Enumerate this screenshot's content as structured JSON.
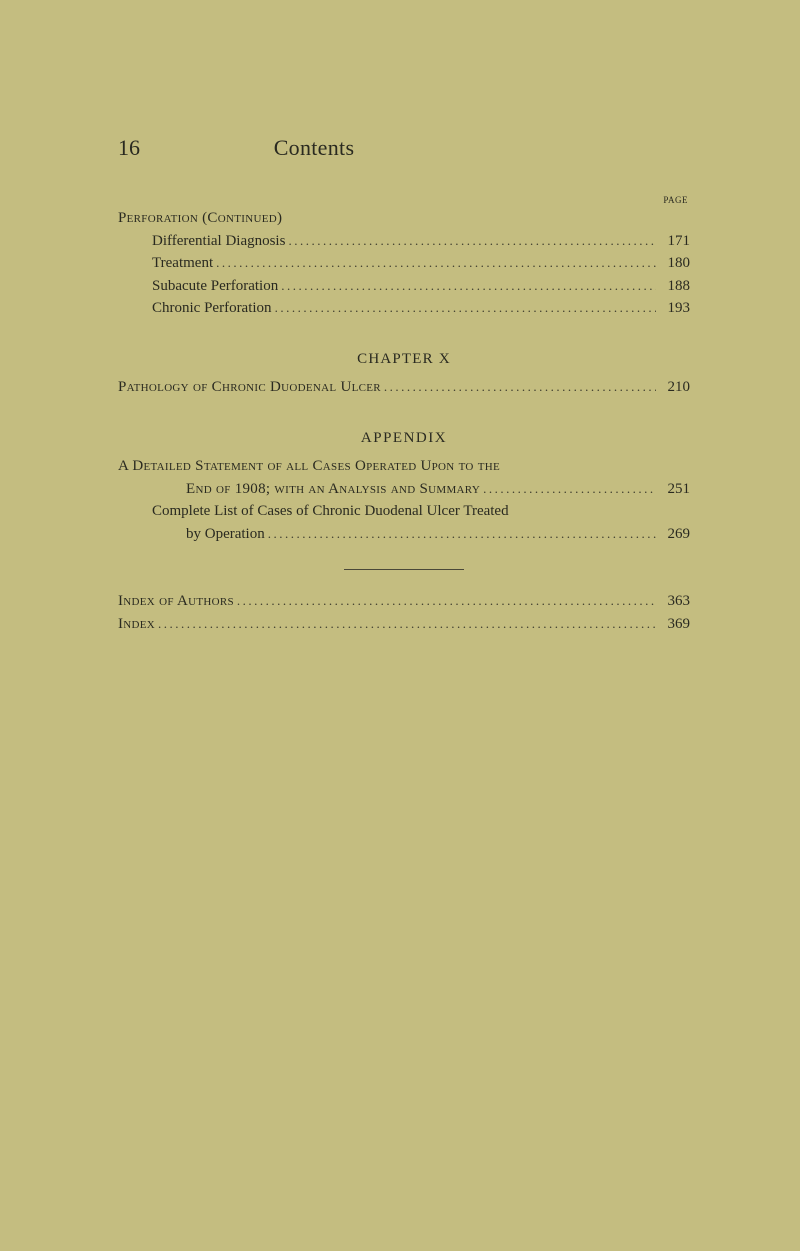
{
  "header": {
    "page_number": "16",
    "title": "Contents",
    "page_label": "PAGE"
  },
  "dots": "..................................................................................................",
  "section_perforation": {
    "heading": "Perforation (Continued)",
    "items": [
      {
        "label": "Differential Diagnosis",
        "page": "171"
      },
      {
        "label": "Treatment",
        "page": "180"
      },
      {
        "label": "Subacute Perforation",
        "page": "188"
      },
      {
        "label": "Chronic Perforation",
        "page": "193"
      }
    ]
  },
  "chapter_x": {
    "title": "CHAPTER X",
    "entry": {
      "label": "Pathology of Chronic Duodenal Ulcer",
      "page": "210"
    }
  },
  "appendix": {
    "title": "APPENDIX",
    "entry1": {
      "line1": "A Detailed Statement of all Cases Operated Upon to the",
      "line2_label": "End of 1908; with an Analysis and Summary",
      "line2_page": "251"
    },
    "entry2": {
      "line1": "Complete List of Cases of Chronic Duodenal Ulcer Treated",
      "line2_label": "by Operation",
      "line2_page": "269"
    }
  },
  "index_block": {
    "entry1": {
      "label": "Index of Authors",
      "page": "363"
    },
    "entry2": {
      "label": "Index",
      "page": "369"
    }
  }
}
